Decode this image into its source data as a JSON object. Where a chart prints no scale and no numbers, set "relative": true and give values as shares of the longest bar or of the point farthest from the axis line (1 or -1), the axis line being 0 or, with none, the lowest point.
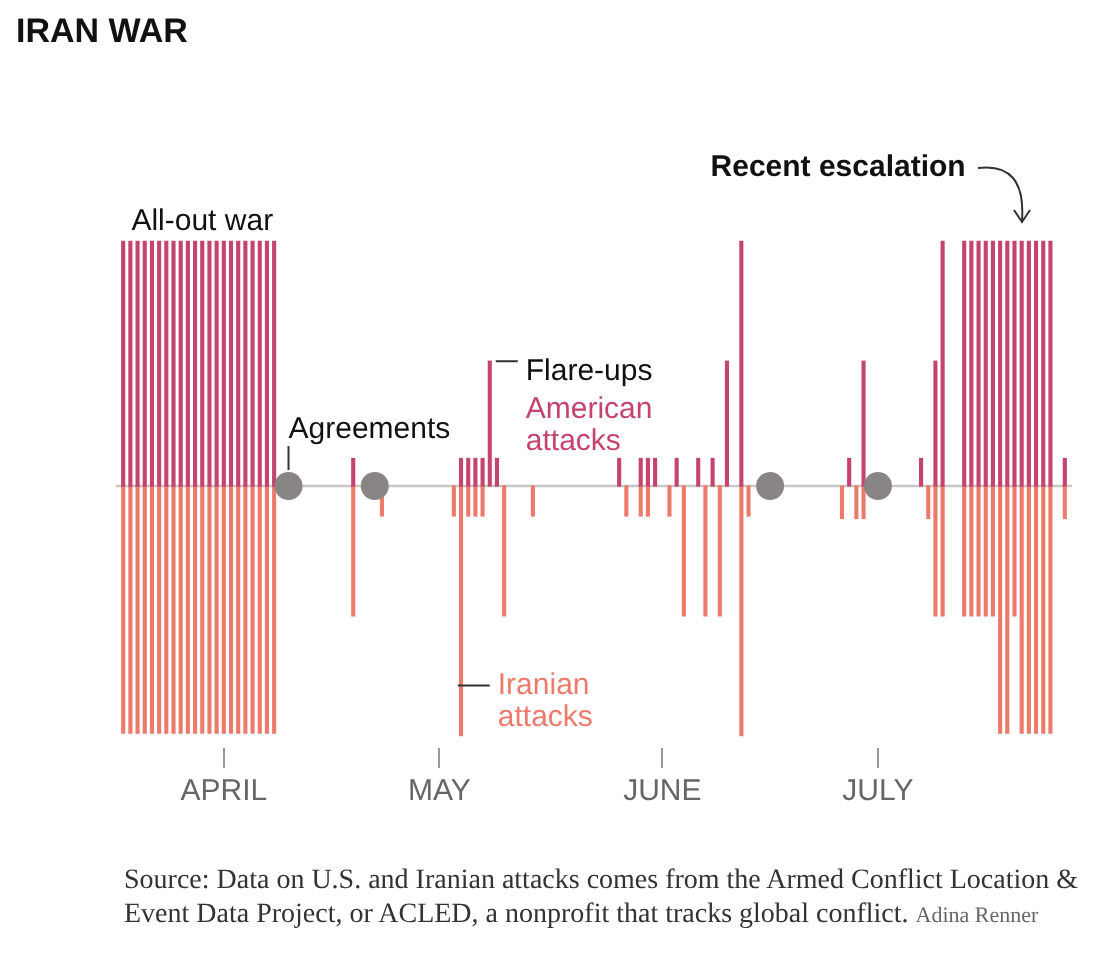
{
  "chart_data": {
    "type": "bar",
    "title": "IRAN WAR",
    "relative": true,
    "xlim": [
      "--03-17",
      "--07-28"
    ],
    "xticks": [
      {
        "value": "--04-01",
        "label": "APRIL"
      },
      {
        "value": "--05-01",
        "label": "MAY"
      },
      {
        "value": "--06-01",
        "label": "JUNE"
      },
      {
        "value": "--07-01",
        "label": "JULY"
      }
    ],
    "annotations": [
      {
        "text": "All-out war",
        "x": "--03-29",
        "y": 0.98
      },
      {
        "text": "Agreements",
        "x": "--04-10",
        "y": 0
      },
      {
        "text": "Flare-ups",
        "x": "--05-08",
        "y": 0.5
      },
      {
        "text": "Recent escalation",
        "x": "--07-21",
        "y": 0.98
      },
      "Source: Data on U.S. and Iranian attacks comes from the Armed Conflict Location & Event Data Project, or ACLED, a nonprofit that tracks global conflict.",
      "Adina Renner"
    ],
    "series": [
      {
        "name": "American attacks",
        "color": "#c4446f",
        "x": [
          "--03-18",
          "--03-19",
          "--03-20",
          "--03-21",
          "--03-22",
          "--03-23",
          "--03-24",
          "--03-25",
          "--03-26",
          "--03-27",
          "--03-28",
          "--03-29",
          "--03-30",
          "--03-31",
          "--04-01",
          "--04-02",
          "--04-03",
          "--04-04",
          "--04-05",
          "--04-06",
          "--04-07",
          "--04-08",
          "--04-19",
          "--05-04",
          "--05-05",
          "--05-06",
          "--05-07",
          "--05-08",
          "--05-09",
          "--05-26",
          "--05-29",
          "--05-30",
          "--05-31",
          "--06-03",
          "--06-06",
          "--06-08",
          "--06-10",
          "--06-12",
          "--06-27",
          "--06-29",
          "--07-07",
          "--07-09",
          "--07-10",
          "--07-13",
          "--07-14",
          "--07-15",
          "--07-16",
          "--07-17",
          "--07-18",
          "--07-19",
          "--07-20",
          "--07-21",
          "--07-22",
          "--07-23",
          "--07-24",
          "--07-25",
          "--07-27"
        ],
        "values": [
          0.98,
          0.98,
          0.98,
          0.98,
          0.98,
          0.98,
          0.98,
          0.98,
          0.98,
          0.98,
          0.98,
          0.98,
          0.98,
          0.98,
          0.98,
          0.98,
          0.98,
          0.98,
          0.98,
          0.98,
          0.98,
          0.98,
          0.11,
          0.11,
          0.11,
          0.11,
          0.11,
          0.5,
          0.11,
          0.11,
          0.11,
          0.11,
          0.11,
          0.11,
          0.11,
          0.11,
          0.5,
          0.98,
          0.11,
          0.5,
          0.11,
          0.5,
          0.98,
          0.98,
          0.98,
          0.98,
          0.98,
          0.98,
          0.98,
          0.98,
          0.98,
          0.98,
          0.98,
          0.98,
          0.98,
          0.98,
          0.11
        ]
      },
      {
        "name": "Iranian attacks",
        "color": "#ec7b6c",
        "x": [
          "--03-18",
          "--03-19",
          "--03-20",
          "--03-21",
          "--03-22",
          "--03-23",
          "--03-24",
          "--03-25",
          "--03-26",
          "--03-27",
          "--03-28",
          "--03-29",
          "--03-30",
          "--03-31",
          "--04-01",
          "--04-02",
          "--04-03",
          "--04-04",
          "--04-05",
          "--04-06",
          "--04-07",
          "--04-08",
          "--04-19",
          "--04-23",
          "--05-03",
          "--05-04",
          "--05-05",
          "--05-06",
          "--05-07",
          "--05-10",
          "--05-14",
          "--05-27",
          "--05-29",
          "--05-30",
          "--06-02",
          "--06-04",
          "--06-07",
          "--06-09",
          "--06-12",
          "--06-13",
          "--06-26",
          "--06-28",
          "--06-29",
          "--07-08",
          "--07-09",
          "--07-10",
          "--07-13",
          "--07-14",
          "--07-15",
          "--07-16",
          "--07-17",
          "--07-18",
          "--07-19",
          "--07-20",
          "--07-21",
          "--07-22",
          "--07-23",
          "--07-24",
          "--07-25",
          "--07-27"
        ],
        "values": [
          -0.99,
          -0.99,
          -0.99,
          -0.99,
          -0.99,
          -0.99,
          -0.99,
          -0.99,
          -0.99,
          -0.99,
          -0.99,
          -0.99,
          -0.99,
          -0.99,
          -0.99,
          -0.99,
          -0.99,
          -0.99,
          -0.99,
          -0.99,
          -0.99,
          -0.99,
          -0.52,
          -0.12,
          -0.12,
          -1,
          -0.12,
          -0.12,
          -0.12,
          -0.52,
          -0.12,
          -0.12,
          -0.12,
          -0.12,
          -0.12,
          -0.52,
          -0.52,
          -0.52,
          -1,
          -0.12,
          -0.13,
          -0.13,
          -0.13,
          -0.13,
          -0.52,
          -0.52,
          -0.52,
          -0.52,
          -0.52,
          -0.52,
          -0.52,
          -0.99,
          -0.99,
          -0.52,
          -0.99,
          -0.99,
          -0.99,
          -0.99,
          -0.99,
          -0.13
        ]
      },
      {
        "type": "scatter",
        "color": "#8a8585",
        "x": [
          "--04-10",
          "--04-22",
          "--06-16",
          "--07-01"
        ],
        "values": [
          0,
          0,
          0,
          0
        ]
      }
    ]
  }
}
